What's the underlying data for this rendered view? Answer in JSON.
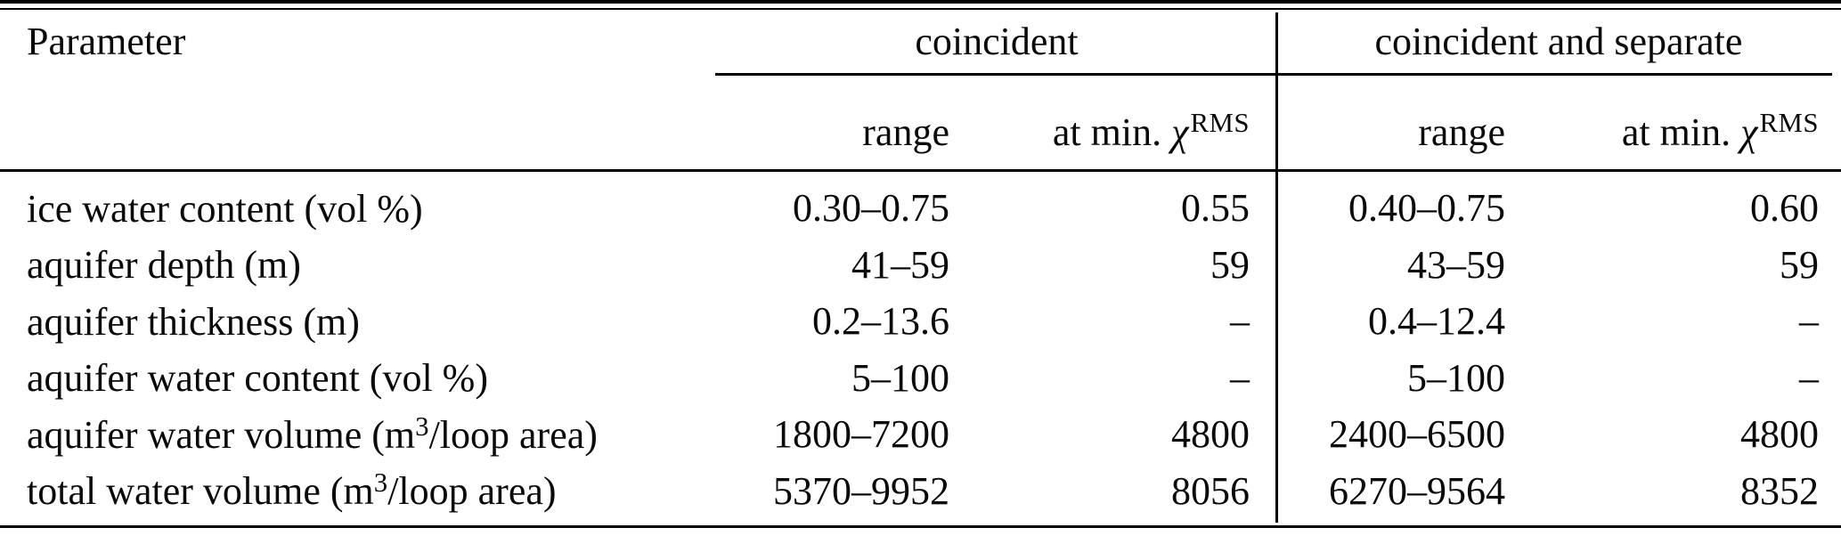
{
  "table": {
    "param_header": "Parameter",
    "groups": [
      {
        "label": "coincident"
      },
      {
        "label": "coincident and separate"
      }
    ],
    "sub": {
      "range": "range",
      "at_min": "at min. ",
      "chi": "χ",
      "chi_sup": "RMS"
    },
    "rows": [
      {
        "label_pre": "ice water content (vol %)",
        "label_sup": "",
        "label_post": "",
        "c_range": "0.30–0.75",
        "c_min": "0.55",
        "cs_range": "0.40–0.75",
        "cs_min": "0.60"
      },
      {
        "label_pre": "aquifer depth (m)",
        "label_sup": "",
        "label_post": "",
        "c_range": "41–59",
        "c_min": "59",
        "cs_range": "43–59",
        "cs_min": "59"
      },
      {
        "label_pre": "aquifer thickness (m)",
        "label_sup": "",
        "label_post": "",
        "c_range": "0.2–13.6",
        "c_min": "–",
        "cs_range": "0.4–12.4",
        "cs_min": "–"
      },
      {
        "label_pre": "aquifer water content (vol %)",
        "label_sup": "",
        "label_post": "",
        "c_range": "5–100",
        "c_min": "–",
        "cs_range": "5–100",
        "cs_min": "–"
      },
      {
        "label_pre": "aquifer water volume (m",
        "label_sup": "3",
        "label_post": "/loop area)",
        "c_range": "1800–7200",
        "c_min": "4800",
        "cs_range": "2400–6500",
        "cs_min": "4800"
      },
      {
        "label_pre": "total water volume (m",
        "label_sup": "3",
        "label_post": "/loop area)",
        "c_range": "5370–9952",
        "c_min": "8056",
        "cs_range": "6270–9564",
        "cs_min": "8352"
      }
    ]
  },
  "colors": {
    "text": "#0a0a0a",
    "rule": "#000000",
    "background": "#ffffff"
  }
}
